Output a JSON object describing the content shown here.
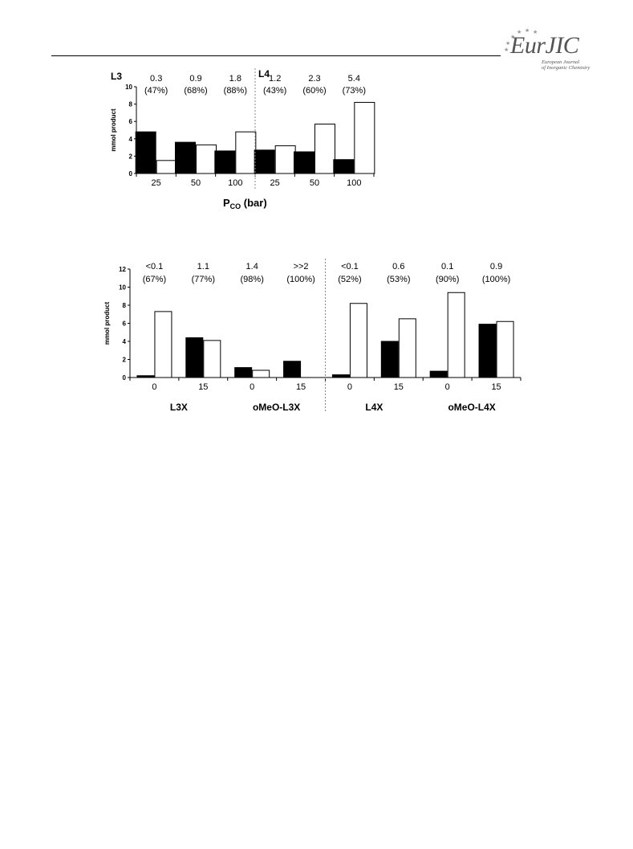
{
  "header": {
    "logo_text": "EurJIC",
    "logo_subtitle_line1": "European Journal",
    "logo_subtitle_line2": "of Inorganic Chemistry"
  },
  "chart_data": [
    {
      "type": "bar",
      "ylabel": "mmol product",
      "xlabel_main": "P",
      "xlabel_sub": "CO",
      "xlabel_suffix": " (bar)",
      "ylim": [
        0,
        10
      ],
      "yticks": [
        "0",
        "2",
        "4",
        "6",
        "8",
        "10"
      ],
      "group_labels": [
        "L3",
        "L4"
      ],
      "categories": [
        "25",
        "50",
        "100",
        "25",
        "50",
        "100"
      ],
      "annotations_top": [
        "0.3",
        "0.9",
        "1.8",
        "1.2",
        "2.3",
        "5.4"
      ],
      "annotations_bottom": [
        "(47%)",
        "(68%)",
        "(88%)",
        "(43%)",
        "(60%)",
        "(73%)"
      ],
      "series": [
        {
          "values": [
            4.8,
            3.6,
            2.6,
            2.7,
            2.5,
            1.6
          ],
          "color": "#000000"
        },
        {
          "values": [
            1.5,
            3.3,
            4.8,
            3.2,
            5.7,
            8.2
          ],
          "color": "#ffffff"
        }
      ]
    },
    {
      "type": "bar",
      "ylabel": "mmol product",
      "ylim": [
        0,
        12
      ],
      "yticks": [
        "0",
        "2",
        "4",
        "6",
        "8",
        "10",
        "12"
      ],
      "categories": [
        "0",
        "15",
        "0",
        "15",
        "0",
        "15",
        "0",
        "15"
      ],
      "group_labels": [
        "L3X",
        "oMeO-L3X",
        "L4X",
        "oMeO-L4X"
      ],
      "annotations_top": [
        "<0.1",
        "1.1",
        "1.4",
        ">>2",
        "<0.1",
        "0.6",
        "0.1",
        "0.9"
      ],
      "annotations_bottom": [
        "(67%)",
        "(77%)",
        "(98%)",
        "(100%)",
        "(52%)",
        "(53%)",
        "(90%)",
        "(100%)"
      ],
      "series": [
        {
          "values": [
            0.2,
            4.4,
            1.1,
            1.8,
            0.3,
            4.0,
            0.7,
            5.9
          ],
          "color": "#000000"
        },
        {
          "values": [
            7.3,
            4.1,
            0.8,
            0.0,
            8.2,
            6.5,
            9.4,
            6.2
          ],
          "color": "#ffffff"
        }
      ]
    }
  ]
}
